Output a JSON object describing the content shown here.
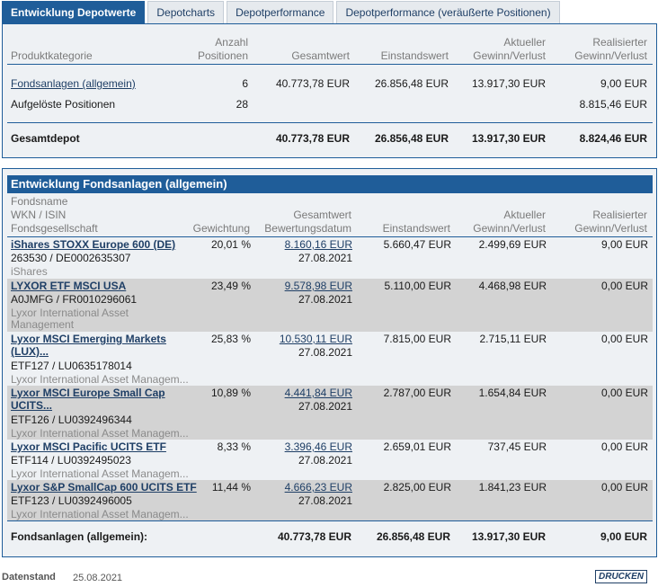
{
  "tabs": [
    {
      "label": "Entwicklung Depotwerte",
      "active": true
    },
    {
      "label": "Depotcharts",
      "active": false
    },
    {
      "label": "Depotperformance",
      "active": false
    },
    {
      "label": "Depotperformance (veräußerte Positionen)",
      "active": false
    }
  ],
  "summary": {
    "headers": {
      "category": "Produktkategorie",
      "count_1": "Anzahl",
      "count_2": "Positionen",
      "total": "Gesamtwert",
      "cost": "Einstandswert",
      "current_1": "Aktueller",
      "current_2": "Gewinn/Verlust",
      "realized_1": "Realisierter",
      "realized_2": "Gewinn/Verlust"
    },
    "rows": [
      {
        "category": "Fondsanlagen (allgemein)",
        "count": "6",
        "total": "40.773,78 EUR",
        "cost": "26.856,48 EUR",
        "current": "13.917,30 EUR",
        "realized": "9,00 EUR"
      },
      {
        "category": "Aufgelöste Positionen",
        "count": "28",
        "total": "",
        "cost": "",
        "current": "",
        "realized": "8.815,46 EUR"
      }
    ],
    "total_row": {
      "label": "Gesamtdepot",
      "total": "40.773,78 EUR",
      "cost": "26.856,48 EUR",
      "current": "13.917,30 EUR",
      "realized": "8.824,46 EUR"
    }
  },
  "funds": {
    "title": "Entwicklung Fondsanlagen (allgemein)",
    "headers": {
      "name": "Fondsname",
      "wkn": "WKN / ISIN",
      "company": "Fondsgesellschaft",
      "weight": "Gewichtung",
      "total_1": "Gesamtwert",
      "total_2": "Bewertungsdatum",
      "cost": "Einstandswert",
      "current_1": "Aktueller",
      "current_2": "Gewinn/Verlust",
      "realized_1": "Realisierter",
      "realized_2": "Gewinn/Verlust"
    },
    "rows": [
      {
        "name": "iShares STOXX Europe 600 (DE)",
        "name2": "",
        "wkn": "263530 /  DE0002635307",
        "company": "iShares",
        "company2": "",
        "weight": "20,01 %",
        "total": "8.160,16 EUR",
        "date": "27.08.2021",
        "cost": "5.660,47 EUR",
        "current": "2.499,69 EUR",
        "realized": "9,00 EUR"
      },
      {
        "name": "LYXOR ETF MSCI USA",
        "name2": "",
        "wkn": "A0JMFG /  FR0010296061",
        "company": "Lyxor International Asset",
        "company2": "Management",
        "weight": "23,49 %",
        "total": "9.578,98 EUR",
        "date": "27.08.2021",
        "cost": "5.110,00 EUR",
        "current": "4.468,98 EUR",
        "realized": "0,00 EUR"
      },
      {
        "name": "Lyxor MSCI Emerging Markets",
        "name2": "(LUX)...",
        "wkn": "ETF127 /  LU0635178014",
        "company": "Lyxor International Asset Managem...",
        "company2": "",
        "weight": "25,83 %",
        "total": "10.530,11 EUR",
        "date": "27.08.2021",
        "cost": "7.815,00 EUR",
        "current": "2.715,11 EUR",
        "realized": "0,00 EUR"
      },
      {
        "name": "Lyxor MSCI Europe Small Cap",
        "name2": "UCITS...",
        "wkn": "ETF126 /  LU0392496344",
        "company": "Lyxor International Asset Managem...",
        "company2": "",
        "weight": "10,89 %",
        "total": "4.441,84 EUR",
        "date": "27.08.2021",
        "cost": "2.787,00 EUR",
        "current": "1.654,84 EUR",
        "realized": "0,00 EUR"
      },
      {
        "name": "Lyxor MSCI Pacific UCITS ETF",
        "name2": "",
        "wkn": "ETF114 /  LU0392495023",
        "company": "Lyxor International Asset Managem...",
        "company2": "",
        "weight": "8,33 %",
        "total": "3.396,46 EUR",
        "date": "27.08.2021",
        "cost": "2.659,01 EUR",
        "current": "737,45 EUR",
        "realized": "0,00 EUR"
      },
      {
        "name": "Lyxor S&P SmallCap 600 UCITS ETF",
        "name2": "",
        "wkn": "ETF123 /  LU0392496005",
        "company": "Lyxor International Asset Managem...",
        "company2": "",
        "weight": "11,44 %",
        "total": "4.666,23 EUR",
        "date": "27.08.2021",
        "cost": "2.825,00 EUR",
        "current": "1.841,23 EUR",
        "realized": "0,00 EUR"
      }
    ],
    "total_row": {
      "label": "Fondsanlagen (allgemein):",
      "total": "40.773,78 EUR",
      "cost": "26.856,48 EUR",
      "current": "13.917,30 EUR",
      "realized": "9,00 EUR"
    }
  },
  "footer": {
    "label": "Datenstand",
    "date": "25.08.2021",
    "print_label": "DRUCKEN"
  },
  "colors": {
    "accent": "#1f5d99",
    "panel_bg": "#eef1f4",
    "row_shade": "#d3d3d3",
    "link": "#1f3f66"
  }
}
